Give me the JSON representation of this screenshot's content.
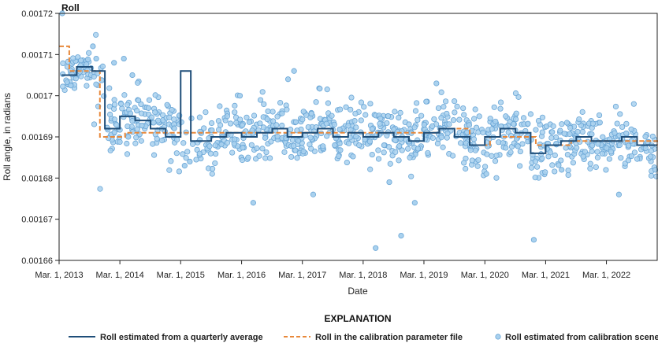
{
  "chart_data": {
    "type": "line",
    "title": "Roll",
    "xlabel": "Date",
    "ylabel": "Roll angle, in radians",
    "xlim": [
      "2013-03-01",
      "2022-12-31"
    ],
    "ylim": [
      0.00166,
      0.00172
    ],
    "x_ticks": [
      "2013-03-01",
      "2014-03-01",
      "2015-03-01",
      "2016-03-01",
      "2017-03-01",
      "2018-03-01",
      "2019-03-01",
      "2020-03-01",
      "2021-03-01",
      "2022-03-01"
    ],
    "x_tick_labels": [
      "Mar. 1, 2013",
      "Mar. 1, 2014",
      "Mar. 1, 2015",
      "Mar. 1, 2016",
      "Mar. 1, 2017",
      "Mar. 1, 2018",
      "Mar. 1, 2019",
      "Mar. 1, 2020",
      "Mar. 1, 2021",
      "Mar. 1, 2022"
    ],
    "y_ticks": [
      0.00166,
      0.00167,
      0.00168,
      0.00169,
      0.0017,
      0.00171,
      0.00172
    ],
    "y_tick_labels": [
      "0.00166",
      "0.00167",
      "0.00168",
      "0.00169",
      "0.0017",
      "0.00171",
      "0.00172"
    ],
    "grid": false,
    "legend_title": "EXPLANATION",
    "legend_placement": "bottom",
    "series": [
      {
        "name": "Roll estimated from a quarterly average",
        "style": "step-solid",
        "color": "#1f4e79",
        "points": [
          [
            "2013-03-15",
            0.001705
          ],
          [
            "2013-06-15",
            0.001707
          ],
          [
            "2013-09-15",
            0.001706
          ],
          [
            "2013-12-01",
            0.001692
          ],
          [
            "2014-03-01",
            0.001695
          ],
          [
            "2014-06-01",
            0.001694
          ],
          [
            "2014-09-01",
            0.001692
          ],
          [
            "2014-12-01",
            0.00169
          ],
          [
            "2015-03-01",
            0.001706
          ],
          [
            "2015-05-01",
            0.001689
          ],
          [
            "2015-09-01",
            0.00169
          ],
          [
            "2015-12-01",
            0.001691
          ],
          [
            "2016-03-01",
            0.00169
          ],
          [
            "2016-06-01",
            0.001691
          ],
          [
            "2016-09-01",
            0.001692
          ],
          [
            "2016-12-01",
            0.00169
          ],
          [
            "2017-03-01",
            0.001691
          ],
          [
            "2017-06-01",
            0.001692
          ],
          [
            "2017-09-01",
            0.00169
          ],
          [
            "2017-12-01",
            0.001691
          ],
          [
            "2018-03-01",
            0.00169
          ],
          [
            "2018-06-01",
            0.001691
          ],
          [
            "2018-09-01",
            0.00169
          ],
          [
            "2018-12-01",
            0.001689
          ],
          [
            "2019-03-01",
            0.001691
          ],
          [
            "2019-06-01",
            0.001692
          ],
          [
            "2019-09-01",
            0.00169
          ],
          [
            "2019-12-01",
            0.001688
          ],
          [
            "2020-03-01",
            0.00169
          ],
          [
            "2020-06-01",
            0.001692
          ],
          [
            "2020-09-01",
            0.001691
          ],
          [
            "2020-12-01",
            0.001686
          ],
          [
            "2021-03-01",
            0.001688
          ],
          [
            "2021-06-01",
            0.001689
          ],
          [
            "2021-09-01",
            0.00169
          ],
          [
            "2021-12-01",
            0.001689
          ],
          [
            "2022-03-01",
            0.001689
          ],
          [
            "2022-06-01",
            0.00169
          ],
          [
            "2022-09-01",
            0.001688
          ],
          [
            "2022-12-31",
            0.001688
          ]
        ]
      },
      {
        "name": "Roll in the calibration parameter file",
        "style": "step-dashed",
        "color": "#e8883a",
        "points": [
          [
            "2013-03-01",
            0.001712
          ],
          [
            "2013-05-01",
            0.001706
          ],
          [
            "2013-11-01",
            0.00169
          ],
          [
            "2014-04-01",
            0.001691
          ],
          [
            "2019-06-01",
            0.001692
          ],
          [
            "2019-12-01",
            0.001688
          ],
          [
            "2020-04-01",
            0.00169
          ],
          [
            "2021-01-01",
            0.001688
          ],
          [
            "2021-08-01",
            0.001689
          ],
          [
            "2022-12-31",
            0.001688
          ]
        ]
      },
      {
        "name": "Roll estimated from calibration scene",
        "style": "scatter",
        "color": "#a9d1ee",
        "edge_color": "#6aa6d6",
        "note_points": "points sampled around the quarterly average with scatter; outliers listed explicitly",
        "outliers": [
          [
            "2013-03-20",
            0.00172
          ],
          [
            "2013-09-20",
            0.001712
          ],
          [
            "2013-10-10",
            0.001709
          ],
          [
            "2014-01-25",
            0.001708
          ],
          [
            "2014-03-25",
            0.001709
          ],
          [
            "2014-05-15",
            0.001705
          ],
          [
            "2014-08-20",
            0.001697
          ],
          [
            "2015-03-25",
            0.001683
          ],
          [
            "2015-04-25",
            0.001684
          ],
          [
            "2016-02-20",
            0.0017
          ],
          [
            "2016-05-10",
            0.001674
          ],
          [
            "2016-12-05",
            0.001704
          ],
          [
            "2017-01-10",
            0.001706
          ],
          [
            "2017-05-05",
            0.001676
          ],
          [
            "2018-05-15",
            0.001663
          ],
          [
            "2018-08-05",
            0.001679
          ],
          [
            "2018-10-15",
            0.001666
          ],
          [
            "2019-01-05",
            0.001674
          ],
          [
            "2019-05-15",
            0.001703
          ],
          [
            "2020-03-10",
            0.001681
          ],
          [
            "2020-12-20",
            0.001665
          ],
          [
            "2021-06-05",
            0.001682
          ],
          [
            "2022-05-15",
            0.001676
          ],
          [
            "2022-12-20",
            0.001682
          ]
        ]
      }
    ]
  }
}
